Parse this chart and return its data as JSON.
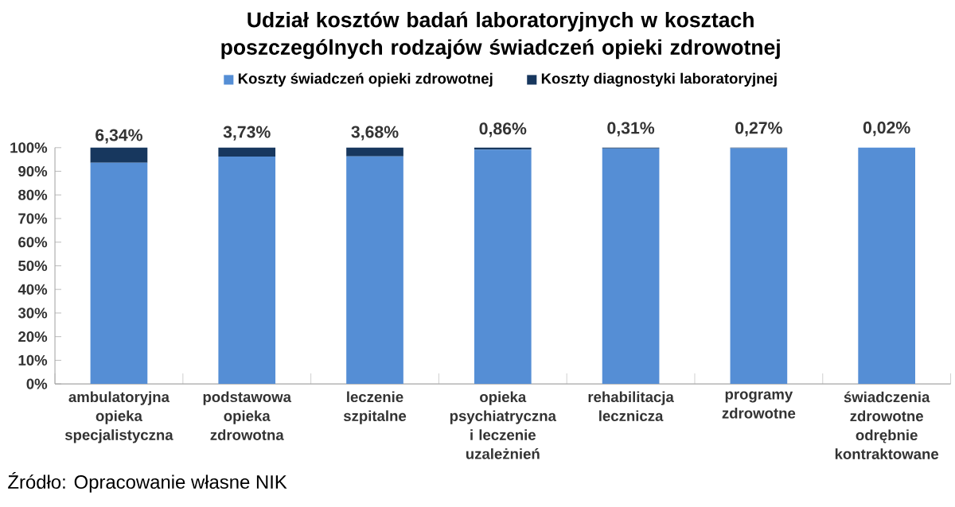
{
  "chart_data": {
    "type": "bar",
    "stacked": true,
    "title": "Udział kosztów badań laboratoryjnych w kosztach poszczególnych rodzajów świadczeń opieki zdrowotnej",
    "categories": [
      "ambulatoryjna opieka specjalistyczna",
      "podstawowa opieka zdrowotna",
      "leczenie szpitalne",
      "opieka psychiatryczna i leczenie uzależnień",
      "rehabilitacja lecznicza",
      "programy zdrowotne",
      "świadczenia zdrowotne odrębnie kontraktowane"
    ],
    "series": [
      {
        "name": "Koszty świadczeń opieki zdrowotnej",
        "color": "#558ed5",
        "values": [
          93.66,
          96.27,
          96.32,
          99.14,
          99.69,
          99.73,
          99.98
        ]
      },
      {
        "name": "Koszty diagnostyki laboratoryjnej",
        "color": "#17375e",
        "values": [
          6.34,
          3.73,
          3.68,
          0.86,
          0.31,
          0.27,
          0.02
        ],
        "value_labels": [
          "6,34%",
          "3,73%",
          "3,68%",
          "0,86%",
          "0,31%",
          "0,27%",
          "0,02%"
        ]
      }
    ],
    "ylim": [
      0,
      100
    ],
    "yticks": [
      {
        "value": 0,
        "label": "0%"
      },
      {
        "value": 10,
        "label": "10%"
      },
      {
        "value": 20,
        "label": "20%"
      },
      {
        "value": 30,
        "label": "30%"
      },
      {
        "value": 40,
        "label": "40%"
      },
      {
        "value": 50,
        "label": "50%"
      },
      {
        "value": 60,
        "label": "60%"
      },
      {
        "value": 70,
        "label": "70%"
      },
      {
        "value": 80,
        "label": "80%"
      },
      {
        "value": 90,
        "label": "90%"
      },
      {
        "value": 100,
        "label": "100%"
      }
    ],
    "grid": false,
    "legend": "top",
    "annotations": [
      "Źródło: Opracowanie własne NIK"
    ]
  }
}
